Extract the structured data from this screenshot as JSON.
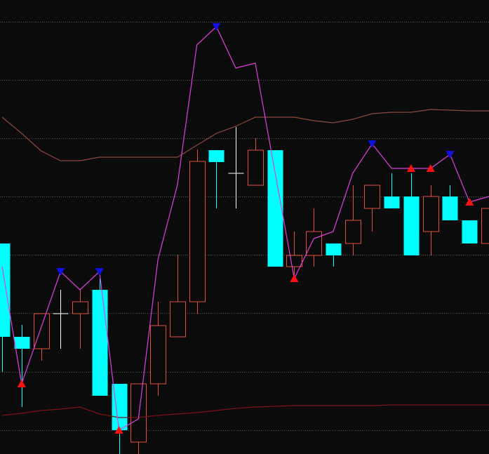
{
  "chart_data": {
    "type": "candlestick",
    "ylim": [
      0,
      647
    ],
    "yticks": [
      34,
      117,
      201,
      284,
      367,
      450,
      533,
      616
    ],
    "grid": true,
    "grid_color": "#5a5a5a",
    "background": "#0b0b0b",
    "up_color": "#e0503c",
    "down_color": "#00ffff",
    "doji_color": "#ffffff",
    "open": [
      300,
      167,
      150,
      200,
      200,
      234,
      100,
      17,
      100,
      167,
      217,
      433,
      400,
      383,
      433,
      267,
      283,
      300,
      300,
      350,
      367,
      367,
      317,
      367,
      333,
      300
    ],
    "high": [
      300,
      184,
      200,
      234,
      234,
      250,
      100,
      100,
      217,
      284,
      434,
      433,
      466,
      450,
      433,
      317,
      350,
      300,
      383,
      383,
      400,
      400,
      383,
      383,
      333,
      367
    ],
    "low": [
      117,
      67,
      133,
      150,
      150,
      83,
      0,
      0,
      83,
      167,
      200,
      350,
      350,
      383,
      267,
      250,
      267,
      267,
      283,
      317,
      350,
      283,
      283,
      333,
      300,
      300
    ],
    "close": [
      167,
      150,
      200,
      200,
      217,
      83,
      34,
      100,
      183,
      217,
      417,
      416,
      400,
      433,
      267,
      283,
      317,
      283,
      333,
      383,
      350,
      283,
      367,
      333,
      300,
      350
    ],
    "series": [
      {
        "kind": "line",
        "color": "#8a4a3c",
        "values": [
          480,
          457,
          432,
          418,
          418,
          423,
          423,
          423,
          423,
          423,
          440,
          457,
          467,
          480,
          480,
          480,
          475,
          472,
          477,
          485,
          487,
          487,
          491,
          490,
          489,
          489
        ]
      },
      {
        "kind": "line",
        "color": "#7a1414",
        "values": [
          55,
          58,
          62,
          64,
          67,
          57,
          52,
          52,
          55,
          57,
          59,
          62,
          65,
          67,
          68,
          69,
          69,
          69,
          69,
          69,
          70,
          70,
          70,
          70,
          70,
          70
        ]
      },
      {
        "kind": "line",
        "color": "#e040e0",
        "x": [
          0,
          1,
          3,
          4,
          5,
          6,
          7,
          8,
          9,
          10,
          11,
          12,
          13,
          15,
          16,
          17,
          18,
          19,
          20,
          22,
          23,
          24,
          25
        ],
        "values": [
          267,
          100,
          260,
          234,
          260,
          34,
          50,
          277,
          383,
          583,
          609,
          550,
          557,
          250,
          307,
          317,
          400,
          442,
          407,
          407,
          427,
          359,
          367
        ]
      },
      {
        "kind": "marker-down",
        "color": "#1010e0",
        "x": [
          3,
          5,
          11,
          19,
          23
        ],
        "values": [
          260,
          260,
          609,
          442,
          427
        ]
      },
      {
        "kind": "marker-up",
        "color": "#ff1010",
        "x": [
          1,
          6,
          15,
          21,
          22,
          24
        ],
        "values": [
          100,
          34,
          250,
          407,
          407,
          359
        ]
      }
    ]
  }
}
